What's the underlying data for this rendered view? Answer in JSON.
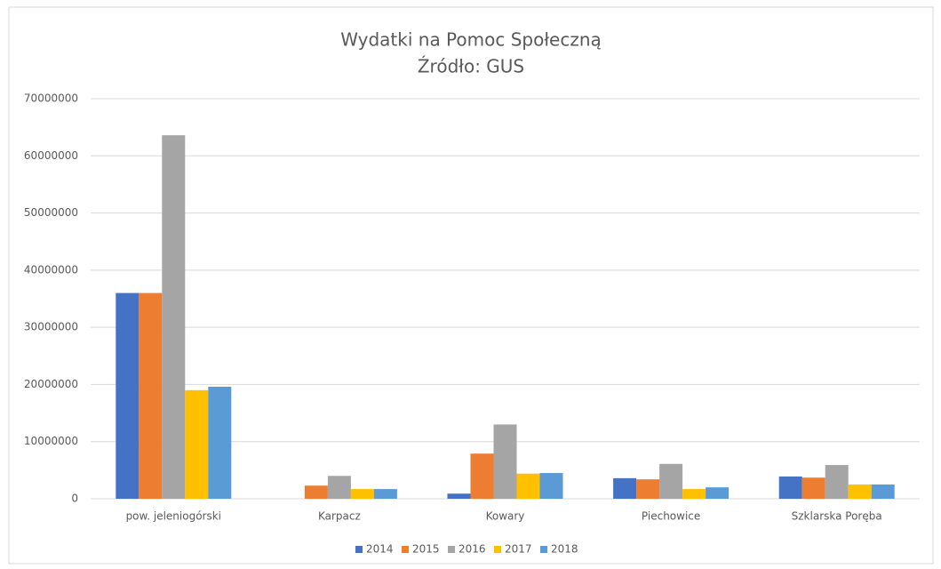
{
  "chart_data": {
    "type": "bar",
    "title": "Wydatki na Pomoc Społeczną",
    "subtitle": "Źródło: GUS",
    "categories": [
      "pow. jeleniogórski",
      "Karpacz",
      "Kowary",
      "Piechowice",
      "Szklarska Poręba"
    ],
    "series": [
      {
        "name": "2014",
        "color": "#4472c4",
        "values": [
          36000000,
          0,
          900000,
          3600000,
          3900000
        ]
      },
      {
        "name": "2015",
        "color": "#ed7d31",
        "values": [
          36000000,
          2300000,
          7900000,
          3400000,
          3700000
        ]
      },
      {
        "name": "2016",
        "color": "#a5a5a5",
        "values": [
          63600000,
          4000000,
          13000000,
          6100000,
          5900000
        ]
      },
      {
        "name": "2017",
        "color": "#ffc000",
        "values": [
          19000000,
          1700000,
          4400000,
          1700000,
          2500000
        ]
      },
      {
        "name": "2018",
        "color": "#5b9bd5",
        "values": [
          19600000,
          1700000,
          4500000,
          2000000,
          2500000
        ]
      }
    ],
    "ylim": [
      0,
      70000000
    ],
    "yticks": [
      0,
      10000000,
      20000000,
      30000000,
      40000000,
      50000000,
      60000000,
      70000000
    ],
    "grid": true,
    "legend": "bottom"
  }
}
